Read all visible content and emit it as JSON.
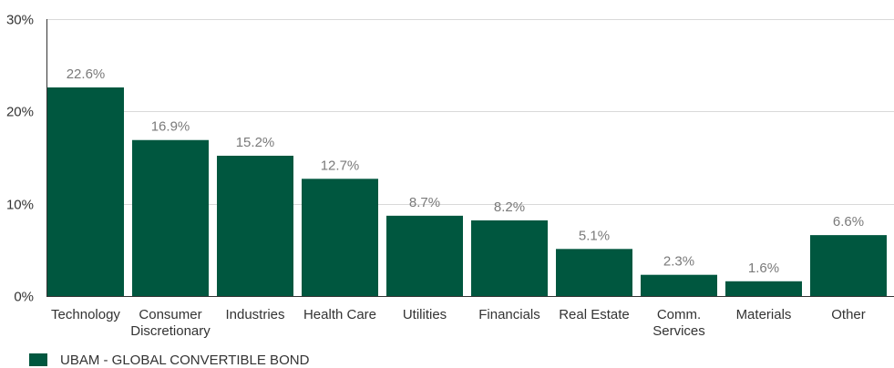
{
  "chart_data": {
    "type": "bar",
    "categories": [
      [
        "Technology"
      ],
      [
        "Consumer",
        "Discretionary"
      ],
      [
        "Industries"
      ],
      [
        "Health Care"
      ],
      [
        "Utilities"
      ],
      [
        "Financials"
      ],
      [
        "Real Estate"
      ],
      [
        "Comm.",
        "Services"
      ],
      [
        "Materials"
      ],
      [
        "Other"
      ]
    ],
    "series": [
      {
        "name": "UBAM - GLOBAL CONVERTIBLE BOND",
        "values": [
          22.6,
          16.9,
          15.2,
          12.7,
          8.7,
          8.2,
          5.1,
          2.3,
          1.6,
          6.6
        ],
        "labels": [
          "22.6%",
          "16.9%",
          "15.2%",
          "12.7%",
          "8.7%",
          "8.2%",
          "5.1%",
          "2.3%",
          "1.6%",
          "6.6%"
        ]
      }
    ],
    "ylim": [
      0,
      30
    ],
    "yticks": [
      0,
      10,
      20,
      30
    ],
    "ytick_labels": [
      "0%",
      "10%",
      "20%",
      "30%"
    ],
    "grid": true,
    "legend_position": "bottom-left",
    "colors": {
      "bar": "#00573f",
      "grid": "#d9d9d9",
      "axis": "#333333"
    }
  }
}
